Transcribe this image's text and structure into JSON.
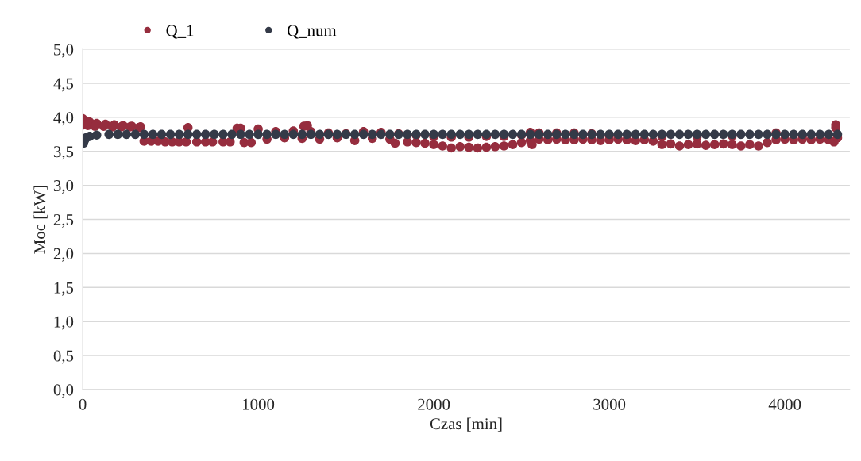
{
  "chart_data": {
    "type": "scatter",
    "xlabel": "Czas [min]",
    "ylabel": "Moc [kW]",
    "xlim": [
      0,
      4370
    ],
    "xticks": [
      0,
      1000,
      2000,
      3000,
      4000
    ],
    "ylim": [
      0,
      5
    ],
    "yticks": [
      {
        "value": 0,
        "label": "0,0"
      },
      {
        "value": 0.5,
        "label": "0,5"
      },
      {
        "value": 1,
        "label": "1,0"
      },
      {
        "value": 1.5,
        "label": "1,5"
      },
      {
        "value": 2,
        "label": "2,0"
      },
      {
        "value": 2.5,
        "label": "2,5"
      },
      {
        "value": 3,
        "label": "3,0"
      },
      {
        "value": 3.5,
        "label": "3,5"
      },
      {
        "value": 4,
        "label": "4,0"
      },
      {
        "value": 4.5,
        "label": "4,5"
      },
      {
        "value": 5,
        "label": "5,0"
      }
    ],
    "grid": "y",
    "legend": "top left",
    "marker": "circle",
    "series": [
      {
        "name": "Q_1",
        "color": "#962d3e",
        "x": [
          0,
          15,
          40,
          80,
          130,
          180,
          230,
          280,
          330,
          5,
          30,
          70,
          120,
          170,
          220,
          270,
          320,
          350,
          390,
          430,
          470,
          510,
          550,
          590,
          650,
          700,
          740,
          800,
          840,
          920,
          960,
          600,
          880,
          900,
          1000,
          1260,
          1280,
          1050,
          1100,
          1150,
          1200,
          1250,
          1300,
          1350,
          1400,
          1450,
          1500,
          1550,
          1600,
          1650,
          1700,
          1750,
          1800,
          1780,
          1850,
          1900,
          1950,
          2000,
          2050,
          2100,
          2150,
          2200,
          2250,
          2300,
          2350,
          2400,
          2450,
          2500,
          2550,
          2560,
          1900,
          2000,
          2100,
          2200,
          2300,
          2400,
          2500,
          2550,
          2600,
          2700,
          2800,
          2900,
          2600,
          2650,
          2700,
          2750,
          2800,
          2850,
          2900,
          2950,
          3000,
          3050,
          3100,
          3150,
          3200,
          3250,
          3300,
          3350,
          3400,
          3450,
          3500,
          3550,
          3600,
          3650,
          3700,
          3750,
          3800,
          3850,
          3900,
          3000,
          3300,
          3500,
          3700,
          3950,
          4100,
          3950,
          4000,
          4050,
          4100,
          4150,
          4200,
          4250,
          4280,
          4290,
          4290,
          4300
        ],
        "values": [
          3.98,
          3.95,
          3.93,
          3.91,
          3.9,
          3.89,
          3.88,
          3.87,
          3.86,
          3.89,
          3.88,
          3.87,
          3.87,
          3.86,
          3.86,
          3.86,
          3.85,
          3.65,
          3.65,
          3.65,
          3.64,
          3.64,
          3.64,
          3.64,
          3.64,
          3.64,
          3.64,
          3.64,
          3.64,
          3.63,
          3.63,
          3.85,
          3.84,
          3.84,
          3.83,
          3.87,
          3.88,
          3.68,
          3.79,
          3.7,
          3.8,
          3.69,
          3.79,
          3.68,
          3.77,
          3.7,
          3.76,
          3.66,
          3.79,
          3.69,
          3.78,
          3.68,
          3.76,
          3.62,
          3.64,
          3.63,
          3.62,
          3.6,
          3.58,
          3.55,
          3.57,
          3.56,
          3.55,
          3.56,
          3.57,
          3.58,
          3.6,
          3.63,
          3.66,
          3.6,
          3.74,
          3.72,
          3.71,
          3.71,
          3.72,
          3.72,
          3.74,
          3.78,
          3.77,
          3.77,
          3.77,
          3.76,
          3.68,
          3.67,
          3.68,
          3.67,
          3.67,
          3.68,
          3.67,
          3.66,
          3.67,
          3.68,
          3.67,
          3.66,
          3.67,
          3.65,
          3.6,
          3.61,
          3.58,
          3.6,
          3.61,
          3.59,
          3.6,
          3.61,
          3.6,
          3.58,
          3.6,
          3.58,
          3.63,
          3.73,
          3.72,
          3.72,
          3.73,
          3.77,
          3.73,
          3.67,
          3.68,
          3.67,
          3.68,
          3.67,
          3.68,
          3.67,
          3.64,
          3.89,
          3.85,
          3.7
        ]
      },
      {
        "name": "Q_num",
        "color": "#343a48",
        "x": [
          5,
          10,
          20,
          40,
          80,
          150,
          200,
          250,
          300,
          350,
          400,
          450,
          500,
          550,
          600,
          650,
          700,
          750,
          800,
          850,
          900,
          950,
          1000,
          1050,
          1100,
          1150,
          1200,
          1250,
          1300,
          1350,
          1400,
          1450,
          1500,
          1550,
          1600,
          1650,
          1700,
          1750,
          1800,
          1850,
          1900,
          1950,
          2000,
          2050,
          2100,
          2150,
          2200,
          2250,
          2300,
          2350,
          2400,
          2450,
          2500,
          2550,
          2600,
          2650,
          2700,
          2750,
          2800,
          2850,
          2900,
          2950,
          3000,
          3050,
          3100,
          3150,
          3200,
          3250,
          3300,
          3350,
          3400,
          3450,
          3500,
          3550,
          3600,
          3650,
          3700,
          3750,
          3800,
          3850,
          3900,
          3950,
          4000,
          4050,
          4100,
          4150,
          4200,
          4250,
          4300
        ],
        "values": [
          3.62,
          3.66,
          3.7,
          3.72,
          3.74,
          3.75,
          3.75,
          3.75,
          3.75,
          3.75,
          3.75,
          3.75,
          3.75,
          3.75,
          3.75,
          3.75,
          3.75,
          3.75,
          3.75,
          3.75,
          3.75,
          3.75,
          3.75,
          3.75,
          3.75,
          3.75,
          3.75,
          3.75,
          3.75,
          3.75,
          3.75,
          3.75,
          3.75,
          3.75,
          3.75,
          3.75,
          3.75,
          3.75,
          3.75,
          3.75,
          3.75,
          3.75,
          3.75,
          3.75,
          3.75,
          3.75,
          3.75,
          3.75,
          3.75,
          3.75,
          3.75,
          3.75,
          3.75,
          3.75,
          3.75,
          3.75,
          3.75,
          3.75,
          3.75,
          3.75,
          3.75,
          3.75,
          3.75,
          3.75,
          3.75,
          3.75,
          3.75,
          3.75,
          3.75,
          3.75,
          3.75,
          3.75,
          3.75,
          3.75,
          3.75,
          3.75,
          3.75,
          3.75,
          3.75,
          3.75,
          3.75,
          3.75,
          3.75,
          3.75,
          3.75,
          3.75,
          3.75,
          3.75,
          3.75
        ]
      }
    ]
  }
}
